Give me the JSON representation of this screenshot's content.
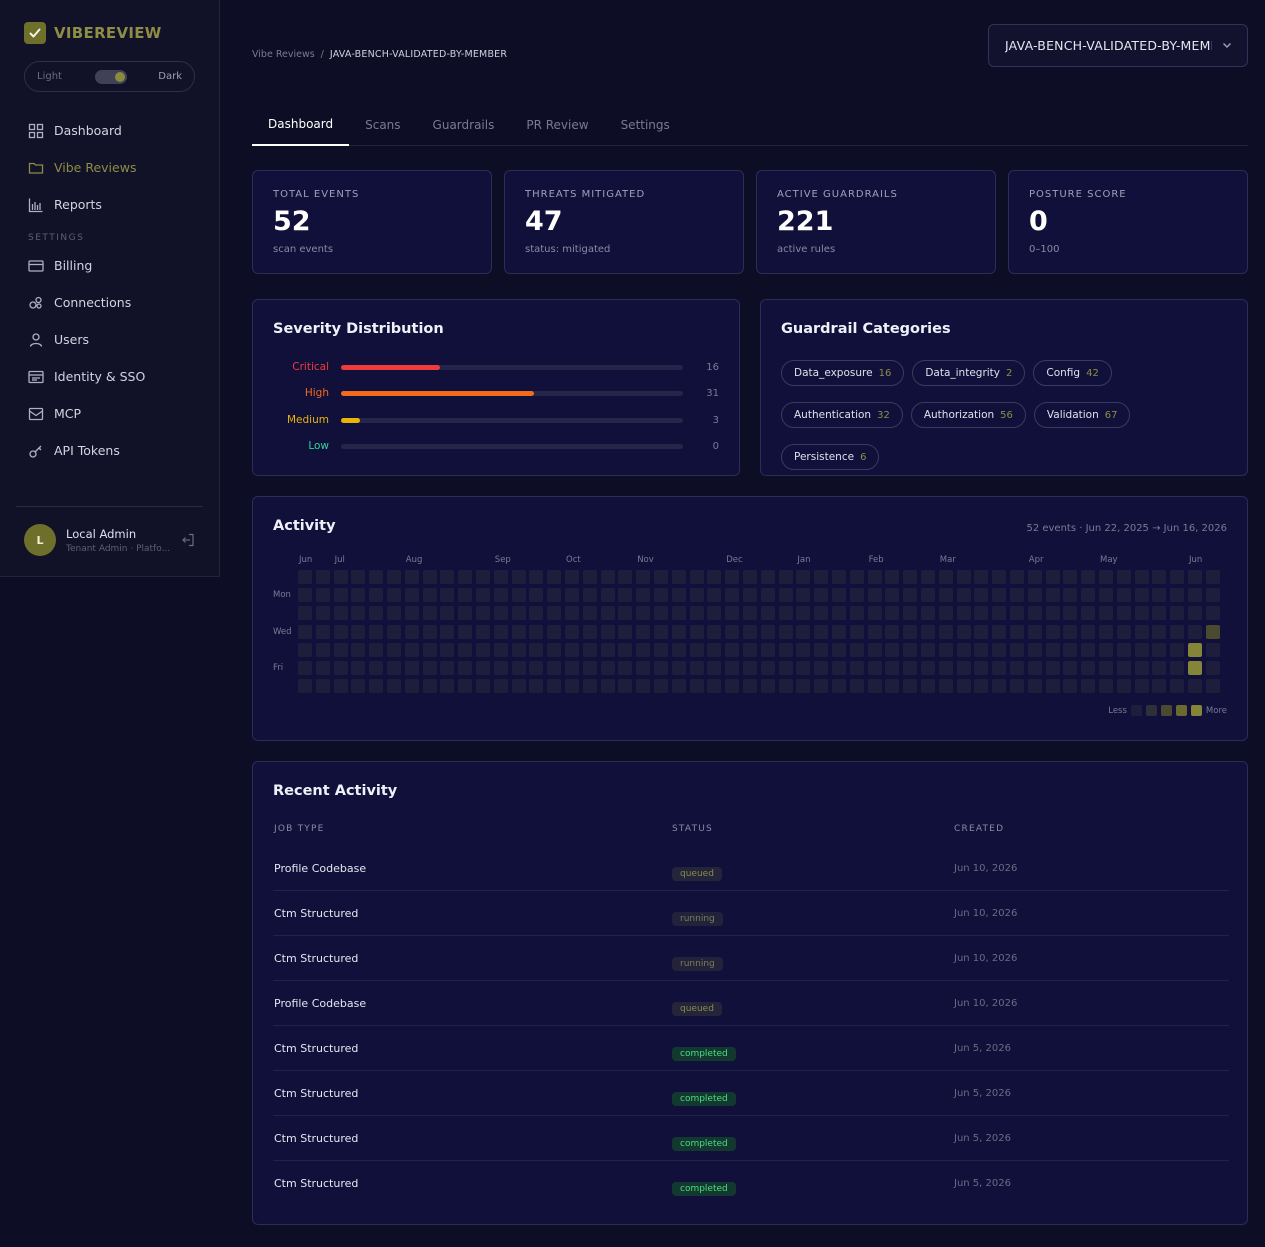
{
  "app": {
    "name": "VIBEREVIEW",
    "theme_light": "Light",
    "theme_dark": "Dark"
  },
  "sidebar": {
    "items": [
      {
        "label": "Dashboard",
        "icon": "dashboard-icon"
      },
      {
        "label": "Vibe Reviews",
        "icon": "folder-icon"
      },
      {
        "label": "Reports",
        "icon": "bar-chart-icon"
      }
    ],
    "settings_label": "SETTINGS",
    "settings_items": [
      {
        "label": "Billing",
        "icon": "credit-card-icon"
      },
      {
        "label": "Connections",
        "icon": "connections-icon"
      },
      {
        "label": "Users",
        "icon": "user-icon"
      },
      {
        "label": "Identity & SSO",
        "icon": "id-card-icon"
      },
      {
        "label": "MCP",
        "icon": "mail-icon"
      },
      {
        "label": "API Tokens",
        "icon": "key-icon"
      }
    ],
    "user": {
      "initial": "L",
      "name": "Local Admin",
      "role": "Tenant Admin · Platfo..."
    }
  },
  "breadcrumb": {
    "parent": "Vibe Reviews",
    "separator": "/",
    "current": "JAVA-BENCH-VALIDATED-BY-MEMBER"
  },
  "project_select": {
    "value": "JAVA-BENCH-VALIDATED-BY-MEMBER"
  },
  "tabs": [
    {
      "label": "Dashboard"
    },
    {
      "label": "Scans"
    },
    {
      "label": "Guardrails"
    },
    {
      "label": "PR Review"
    },
    {
      "label": "Settings"
    }
  ],
  "stats": [
    {
      "label": "TOTAL EVENTS",
      "value": "52",
      "sub": "scan events"
    },
    {
      "label": "THREATS MITIGATED",
      "value": "47",
      "sub": "status: mitigated"
    },
    {
      "label": "ACTIVE GUARDRAILS",
      "value": "221",
      "sub": "active rules"
    },
    {
      "label": "POSTURE SCORE",
      "value": "0",
      "sub": "0–100"
    }
  ],
  "severity": {
    "title": "Severity Distribution",
    "max": 55,
    "rows": [
      {
        "label": "Critical",
        "count": 16,
        "color": "#ef3b3b"
      },
      {
        "label": "High",
        "count": 31,
        "color": "#f26a1b"
      },
      {
        "label": "Medium",
        "count": 3,
        "color": "#eab308"
      },
      {
        "label": "Low",
        "count": 0,
        "color": "#34d399"
      }
    ]
  },
  "categories": {
    "title": "Guardrail Categories",
    "items": [
      {
        "name": "Data_exposure",
        "count": "16"
      },
      {
        "name": "Data_integrity",
        "count": "2"
      },
      {
        "name": "Config",
        "count": "42"
      },
      {
        "name": "Authentication",
        "count": "32"
      },
      {
        "name": "Authorization",
        "count": "56"
      },
      {
        "name": "Validation",
        "count": "67"
      },
      {
        "name": "Persistence",
        "count": "6"
      }
    ]
  },
  "activity": {
    "title": "Activity",
    "summary": "52 events · Jun 22, 2025 → Jun 16, 2026",
    "months": [
      "Jun",
      "Jul",
      "Aug",
      "Sep",
      "Oct",
      "Nov",
      "Dec",
      "Jan",
      "Feb",
      "Mar",
      "Apr",
      "May",
      "Jun"
    ],
    "month_weeks": [
      0,
      2,
      6,
      11,
      15,
      19,
      24,
      28,
      32,
      36,
      41,
      45,
      50
    ],
    "day_labels": [
      "Mon",
      "Wed",
      "Fri"
    ],
    "weeks": 52,
    "levels_colors": [
      "#1e1e3c",
      "#2f2f3a",
      "#4a4a30",
      "#6a6a30",
      "#85853a"
    ],
    "active_cells": [
      {
        "week": 50,
        "day": 4,
        "level": 4
      },
      {
        "week": 50,
        "day": 5,
        "level": 4
      },
      {
        "week": 51,
        "day": 3,
        "level": 2
      }
    ],
    "legend_less": "Less",
    "legend_more": "More"
  },
  "recent": {
    "title": "Recent Activity",
    "columns": [
      "JOB TYPE",
      "STATUS",
      "CREATED"
    ],
    "rows": [
      {
        "job": "Profile Codebase",
        "status": "queued",
        "created": "Jun 10, 2026"
      },
      {
        "job": "Ctm Structured",
        "status": "running",
        "created": "Jun 10, 2026"
      },
      {
        "job": "Ctm Structured",
        "status": "running",
        "created": "Jun 10, 2026"
      },
      {
        "job": "Profile Codebase",
        "status": "queued",
        "created": "Jun 10, 2026"
      },
      {
        "job": "Ctm Structured",
        "status": "completed",
        "created": "Jun 5, 2026"
      },
      {
        "job": "Ctm Structured",
        "status": "completed",
        "created": "Jun 5, 2026"
      },
      {
        "job": "Ctm Structured",
        "status": "completed",
        "created": "Jun 5, 2026"
      },
      {
        "job": "Ctm Structured",
        "status": "completed",
        "created": "Jun 5, 2026"
      }
    ]
  }
}
